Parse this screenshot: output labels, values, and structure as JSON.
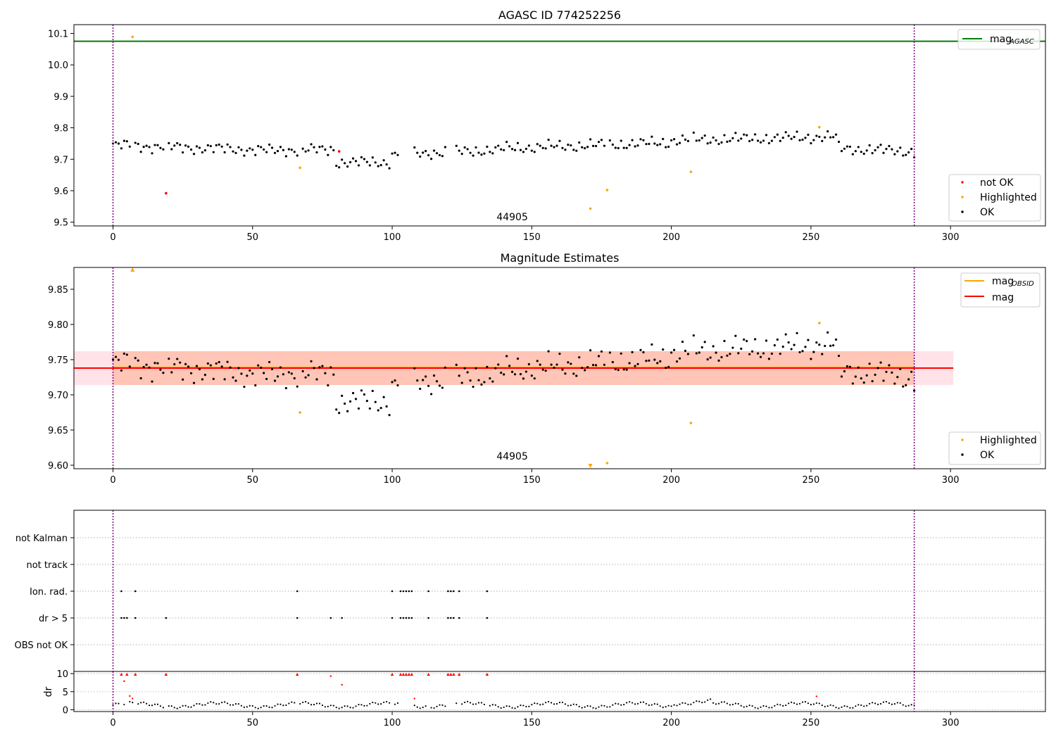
{
  "chart_data": [
    {
      "type": "scatter",
      "title": "AGASC ID 774252256",
      "xlim": [
        -14,
        334
      ],
      "ylim": [
        9.488,
        10.128
      ],
      "xticks": [
        0,
        50,
        100,
        150,
        200,
        250,
        300
      ],
      "yticks": [
        9.5,
        9.6,
        9.7,
        9.8,
        9.9,
        10.0,
        10.1
      ],
      "ytick_labels": [
        "9.5",
        "9.6",
        "9.7",
        "9.8",
        "9.9",
        "10.0",
        "10.1"
      ],
      "vlines": [
        0,
        287
      ],
      "hline": {
        "y": 10.075,
        "label": "mag",
        "label_sub": "AGASC",
        "color": "#008000"
      },
      "annotation": {
        "text": "44905",
        "x": 143,
        "y": 9.51
      },
      "series": [
        {
          "name": "not OK",
          "color": "#ff0000",
          "x": [
            19,
            81
          ],
          "y": [
            9.592,
            9.725
          ]
        },
        {
          "name": "Highlighted",
          "color": "#ffa500",
          "x": [
            7,
            67,
            171,
            177,
            207,
            253
          ],
          "y": [
            10.089,
            9.673,
            9.543,
            9.602,
            9.66,
            9.802
          ]
        },
        {
          "name": "OK",
          "color": "#000000",
          "ok_wave": true
        }
      ],
      "legend_line": "mag",
      "legend_line_sub": "AGASC",
      "legend_points": [
        "not OK",
        "Highlighted",
        "OK"
      ],
      "legend_loc": [
        "upper-right",
        "lower-right"
      ]
    },
    {
      "type": "scatter",
      "title": "Magnitude Estimates",
      "xlim": [
        -14,
        334
      ],
      "ylim": [
        9.595,
        9.881
      ],
      "xticks": [
        0,
        50,
        100,
        150,
        200,
        250,
        300
      ],
      "yticks": [
        9.6,
        9.65,
        9.7,
        9.75,
        9.8,
        9.85
      ],
      "ytick_labels": [
        "9.60",
        "9.65",
        "9.70",
        "9.75",
        "9.80",
        "9.85"
      ],
      "vlines": [
        0,
        287
      ],
      "bands": [
        {
          "x0": -14,
          "x1": 301,
          "y0": 9.714,
          "y1": 9.762,
          "color": "#ffc0cb"
        },
        {
          "x0": 0,
          "x1": 287,
          "y0": 9.714,
          "y1": 9.762,
          "color": "#ffa07a"
        }
      ],
      "lines": [
        {
          "label": "mag",
          "label_sub": "OBSID",
          "color": "#ffa500",
          "x0": 0,
          "x1": 287,
          "y": 9.739
        },
        {
          "label": "mag",
          "color": "#ff0000",
          "x0": -14,
          "x1": 301,
          "y": 9.738
        }
      ],
      "annotation": {
        "text": "44905",
        "x": 143,
        "y": 9.61
      },
      "series": [
        {
          "name": "Highlighted",
          "color": "#ffa500",
          "x": [
            7,
            67,
            171,
            177,
            207,
            253
          ],
          "y": [
            9.878,
            9.675,
            9.599,
            9.603,
            9.66,
            9.802
          ]
        },
        {
          "name": "OK",
          "color": "#000000",
          "ok_wave": true
        }
      ],
      "legend_lines": [
        "mag",
        "mag"
      ],
      "legend_sub": [
        "OBSID",
        ""
      ],
      "legend_points": [
        "Highlighted",
        "OK"
      ],
      "legend_loc": [
        "upper-right",
        "lower-right"
      ]
    },
    {
      "type": "scatter",
      "xlim": [
        -14,
        334
      ],
      "categories": [
        "OBS not OK",
        "dr > 5",
        "Ion. rad.",
        "not track",
        "not Kalman"
      ],
      "vlines": [
        0,
        287
      ],
      "flags": {
        "dr > 5": [
          3,
          4,
          5,
          8,
          19,
          66,
          78,
          82,
          100,
          103,
          104,
          105,
          106,
          107,
          113,
          120,
          121,
          122,
          124,
          134
        ],
        "Ion. rad.": [
          3,
          8,
          66,
          100,
          103,
          104,
          105,
          106,
          107,
          113,
          120,
          121,
          122,
          124,
          134
        ]
      }
    },
    {
      "type": "scatter",
      "xlim": [
        -14,
        334
      ],
      "ylim": [
        -0.5,
        10.6
      ],
      "ylabel": "dr",
      "yticks": [
        0,
        5,
        10
      ],
      "ytick_labels": [
        "0",
        "5",
        "10"
      ],
      "xticks": [
        0,
        50,
        100,
        150,
        200,
        250,
        300
      ],
      "vlines": [
        0,
        287
      ],
      "high_red": [
        3,
        5,
        8,
        19,
        66,
        100,
        103,
        104,
        105,
        106,
        107,
        113,
        120,
        121,
        122,
        124,
        134
      ],
      "mid_red": [
        [
          4,
          7.9
        ],
        [
          6,
          3.8
        ],
        [
          7,
          3.1
        ],
        [
          78,
          9.3
        ],
        [
          82,
          6.9
        ],
        [
          108,
          3.1
        ],
        [
          252,
          3.7
        ]
      ]
    }
  ]
}
